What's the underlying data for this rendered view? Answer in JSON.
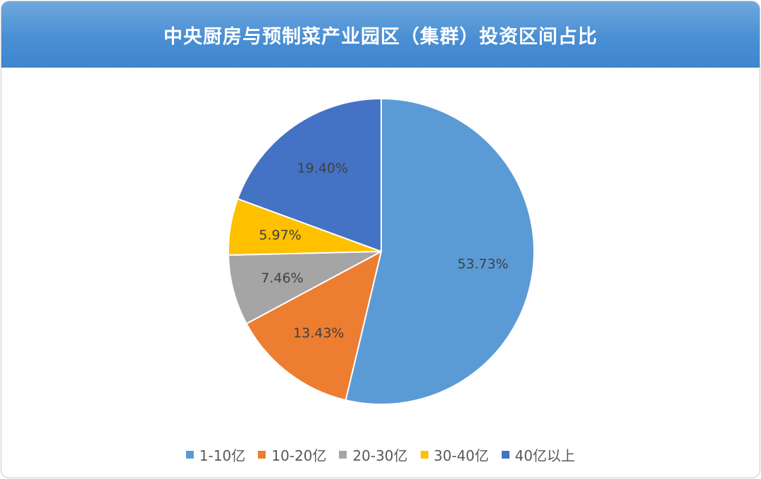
{
  "chart_data": {
    "type": "pie",
    "title": "中央厨房与预制菜产业园区（集群）投资区间占比",
    "categories": [
      "1-10亿",
      "10-20亿",
      "20-30亿",
      "30-40亿",
      "40亿以上"
    ],
    "values": [
      53.73,
      13.43,
      7.46,
      5.97,
      19.4
    ],
    "labels": [
      "53.73%",
      "13.43%",
      "7.46%",
      "5.97%",
      "19.40%"
    ],
    "colors": [
      "#5B9BD5",
      "#ED7D31",
      "#A5A5A5",
      "#FFC000",
      "#4472C4"
    ],
    "legend_position": "bottom",
    "start_angle": "12 o'clock",
    "direction": "clockwise"
  }
}
